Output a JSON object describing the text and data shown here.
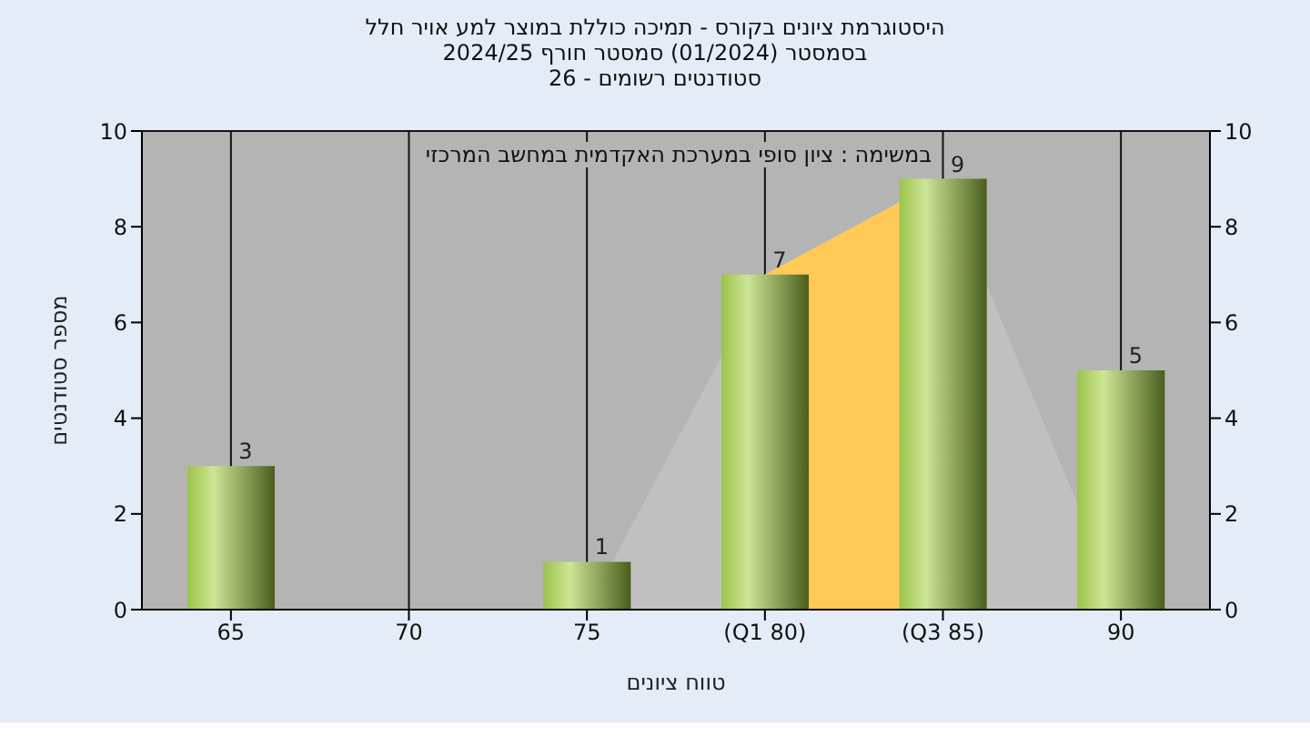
{
  "chart_data": {
    "type": "bar",
    "title": "היסטוגרמת ציונים בקורס - תמיכה כוללת במוצר למע אויר חלל",
    "subtitle": "בסמסטר  (01/2024)  סמסטר חורף 2024/25\nסטודנטים רשומים - 26",
    "xlabel": "טווח ציונים",
    "ylabel": "מספר סטודנטים",
    "annotations": [
      "במשימה : ציון סופי במערכת האקדמית במחשב המרכזי"
    ],
    "categories": [
      "65",
      "70",
      "75",
      "(Q1 80)",
      "(Q3 85)",
      "90"
    ],
    "series": [
      {
        "type": "area",
        "color": "#c0c0c0",
        "values": [
          null,
          null,
          0,
          7,
          9,
          0
        ]
      },
      {
        "type": "area",
        "color": "#ffc957",
        "values": [
          null,
          null,
          null,
          7,
          9,
          null
        ]
      },
      {
        "color": "#9bc34a",
        "values": [
          3,
          0,
          1,
          7,
          9,
          5
        ],
        "value_labels": [
          "3",
          null,
          "1",
          "7",
          "9",
          "5"
        ]
      }
    ],
    "ylim": [
      0,
      10
    ],
    "yticks": [
      0,
      2,
      4,
      6,
      8,
      10
    ],
    "y2lim": [
      0,
      10
    ],
    "y2ticks": [
      0,
      2,
      4,
      6,
      8,
      10
    ],
    "grid": true,
    "legend": false
  }
}
